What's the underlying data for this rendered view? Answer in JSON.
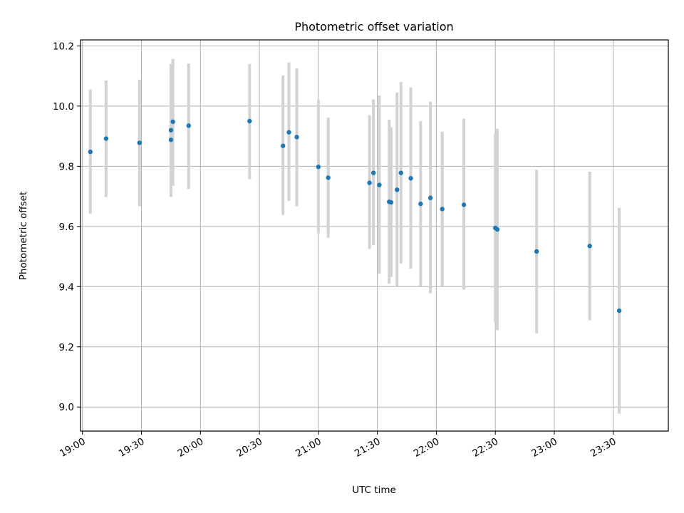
{
  "chart_data": {
    "type": "scatter",
    "title": "Photometric offset variation",
    "xlabel": "UTC time",
    "ylabel": "Photometric offset",
    "x_ticks": [
      "19:00",
      "19:30",
      "20:00",
      "20:30",
      "21:00",
      "21:30",
      "22:00",
      "22:30",
      "23:00",
      "23:30"
    ],
    "y_ticks": [
      "9.0",
      "9.2",
      "9.4",
      "9.6",
      "9.8",
      "10.0",
      "10.2"
    ],
    "xlim": [
      "18:59",
      "23:58"
    ],
    "ylim": [
      8.92,
      10.22
    ],
    "grid": true,
    "colors": {
      "points": "#1f77b4",
      "errorbars": "#d3d3d3",
      "grid": "#b0b0b0"
    },
    "points": [
      {
        "x": "19:04",
        "y": 9.848,
        "ylo": 9.642,
        "yhi": 10.055
      },
      {
        "x": "19:12",
        "y": 9.892,
        "ylo": 9.698,
        "yhi": 10.085
      },
      {
        "x": "19:29",
        "y": 9.878,
        "ylo": 9.667,
        "yhi": 10.088
      },
      {
        "x": "19:45",
        "y": 9.888,
        "ylo": 9.698,
        "yhi": 10.12
      },
      {
        "x": "19:45",
        "y": 9.92,
        "ylo": 9.7,
        "yhi": 10.14
      },
      {
        "x": "19:46",
        "y": 9.948,
        "ylo": 9.735,
        "yhi": 10.157
      },
      {
        "x": "19:54",
        "y": 9.935,
        "ylo": 9.725,
        "yhi": 10.142
      },
      {
        "x": "20:25",
        "y": 9.95,
        "ylo": 9.757,
        "yhi": 10.14
      },
      {
        "x": "20:42",
        "y": 9.868,
        "ylo": 9.638,
        "yhi": 10.102
      },
      {
        "x": "20:45",
        "y": 9.913,
        "ylo": 9.685,
        "yhi": 10.145
      },
      {
        "x": "20:49",
        "y": 9.897,
        "ylo": 9.667,
        "yhi": 10.125
      },
      {
        "x": "21:00",
        "y": 9.798,
        "ylo": 9.578,
        "yhi": 10.02
      },
      {
        "x": "21:05",
        "y": 9.762,
        "ylo": 9.562,
        "yhi": 9.962
      },
      {
        "x": "21:26",
        "y": 9.745,
        "ylo": 9.525,
        "yhi": 9.97
      },
      {
        "x": "21:28",
        "y": 9.778,
        "ylo": 9.538,
        "yhi": 10.022
      },
      {
        "x": "21:31",
        "y": 9.738,
        "ylo": 9.443,
        "yhi": 10.035
      },
      {
        "x": "21:36",
        "y": 9.682,
        "ylo": 9.41,
        "yhi": 9.955
      },
      {
        "x": "21:37",
        "y": 9.68,
        "ylo": 9.432,
        "yhi": 9.93
      },
      {
        "x": "21:40",
        "y": 9.722,
        "ylo": 9.4,
        "yhi": 10.045
      },
      {
        "x": "21:42",
        "y": 9.778,
        "ylo": 9.477,
        "yhi": 10.08
      },
      {
        "x": "21:47",
        "y": 9.76,
        "ylo": 9.46,
        "yhi": 10.062
      },
      {
        "x": "21:52",
        "y": 9.675,
        "ylo": 9.4,
        "yhi": 9.95
      },
      {
        "x": "21:57",
        "y": 9.695,
        "ylo": 9.378,
        "yhi": 10.015
      },
      {
        "x": "22:03",
        "y": 9.658,
        "ylo": 9.4,
        "yhi": 9.915
      },
      {
        "x": "22:14",
        "y": 9.672,
        "ylo": 9.39,
        "yhi": 9.958
      },
      {
        "x": "22:30",
        "y": 9.595,
        "ylo": 9.28,
        "yhi": 9.908
      },
      {
        "x": "22:31",
        "y": 9.59,
        "ylo": 9.255,
        "yhi": 9.925
      },
      {
        "x": "22:51",
        "y": 9.517,
        "ylo": 9.245,
        "yhi": 9.788
      },
      {
        "x": "23:18",
        "y": 9.535,
        "ylo": 9.288,
        "yhi": 9.782
      },
      {
        "x": "23:33",
        "y": 9.32,
        "ylo": 8.978,
        "yhi": 9.662
      }
    ]
  }
}
